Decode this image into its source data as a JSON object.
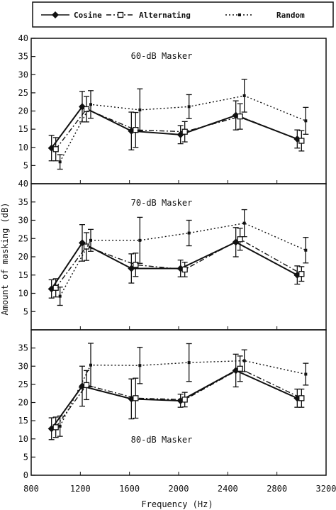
{
  "chart_data": {
    "type": "line",
    "xlabel": "Frequency (Hz)",
    "ylabel": "Amount of masking (dB)",
    "xlim": [
      800,
      3200
    ],
    "x_ticks": [
      "800",
      "1200",
      "1600",
      "2000",
      "2400",
      "2800",
      "3200"
    ],
    "legend": {
      "placement": "top",
      "entries": [
        "Cosine",
        "Alternating",
        "Random"
      ]
    },
    "grid": false,
    "panels": [
      {
        "title": "60-dB Masker",
        "ylim": [
          0,
          40
        ],
        "y_ticks": [
          "5",
          "10",
          "15",
          "20",
          "25",
          "30",
          "35",
          "40"
        ],
        "series": [
          {
            "name": "Cosine",
            "x": [
              1000,
              1250,
              1650,
              2050,
              2500,
              3000
            ],
            "y": [
              9.8,
              21.2,
              14.5,
              13.5,
              18.8,
              12.3
            ],
            "err": [
              3.5,
              4.2,
              5.2,
              2.5,
              4.0,
              2.5
            ]
          },
          {
            "name": "Alternating",
            "x": [
              1000,
              1250,
              1650,
              2050,
              2500,
              3000
            ],
            "y": [
              9.5,
              20.5,
              14.8,
              14.3,
              18.5,
              11.8
            ],
            "err": [
              3.2,
              3.5,
              4.8,
              2.8,
              3.5,
              2.8
            ]
          },
          {
            "name": "Random",
            "x": [
              1000,
              1250,
              1650,
              2050,
              2500,
              3000
            ],
            "y": [
              6.0,
              21.8,
              20.3,
              21.2,
              24.2,
              17.3
            ],
            "err": [
              2.0,
              3.8,
              5.8,
              3.3,
              4.5,
              3.7
            ]
          }
        ]
      },
      {
        "title": "70-dB Masker",
        "ylim": [
          0,
          40
        ],
        "y_ticks": [
          "5",
          "10",
          "15",
          "20",
          "25",
          "30",
          "35",
          "40"
        ],
        "series": [
          {
            "name": "Cosine",
            "x": [
              1000,
              1250,
              1650,
              2050,
              2500,
              3000
            ],
            "y": [
              11.2,
              23.8,
              16.8,
              16.8,
              24.0,
              15.0
            ],
            "err": [
              2.5,
              5.0,
              4.0,
              2.3,
              4.0,
              2.5
            ]
          },
          {
            "name": "Alternating",
            "x": [
              1000,
              1250,
              1650,
              2050,
              2500,
              3000
            ],
            "y": [
              11.5,
              22.8,
              17.8,
              16.5,
              24.8,
              15.3
            ],
            "err": [
              2.5,
              3.8,
              3.2,
              2.0,
              3.0,
              2.0
            ]
          },
          {
            "name": "Random",
            "x": [
              1000,
              1250,
              1650,
              2050,
              2500,
              3000
            ],
            "y": [
              9.2,
              24.5,
              24.5,
              26.5,
              29.2,
              21.8
            ],
            "err": [
              2.5,
              3.0,
              6.3,
              3.5,
              3.7,
              3.5
            ]
          }
        ]
      },
      {
        "title": "80-dB Masker",
        "ylim": [
          0,
          40
        ],
        "y_ticks": [
          "0",
          "5",
          "10",
          "15",
          "20",
          "25",
          "30",
          "35"
        ],
        "series": [
          {
            "name": "Cosine",
            "x": [
              1000,
              1250,
              1650,
              2050,
              2500,
              3000
            ],
            "y": [
              12.8,
              24.5,
              21.0,
              20.5,
              28.8,
              21.2
            ],
            "err": [
              3.0,
              5.5,
              5.5,
              1.8,
              4.5,
              2.5
            ]
          },
          {
            "name": "Alternating",
            "x": [
              1000,
              1250,
              1650,
              2050,
              2500,
              3000
            ],
            "y": [
              13.2,
              24.8,
              21.2,
              20.8,
              29.3,
              21.2
            ],
            "err": [
              2.8,
              4.0,
              5.5,
              2.0,
              3.5,
              2.5
            ]
          },
          {
            "name": "Random",
            "x": [
              1000,
              1250,
              1650,
              2050,
              2500,
              3000
            ],
            "y": [
              13.5,
              30.3,
              30.2,
              31.0,
              31.5,
              27.8
            ],
            "err": [
              2.8,
              6.0,
              5.0,
              5.2,
              3.0,
              3.0
            ]
          }
        ]
      }
    ]
  }
}
